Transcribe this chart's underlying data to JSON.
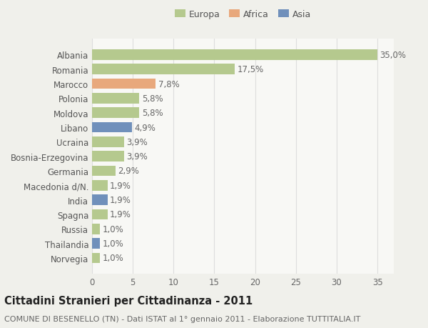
{
  "countries": [
    "Albania",
    "Romania",
    "Marocco",
    "Polonia",
    "Moldova",
    "Libano",
    "Ucraina",
    "Bosnia-Erzegovina",
    "Germania",
    "Macedonia d/N.",
    "India",
    "Spagna",
    "Russia",
    "Thailandia",
    "Norvegia"
  ],
  "values": [
    35.0,
    17.5,
    7.8,
    5.8,
    5.8,
    4.9,
    3.9,
    3.9,
    2.9,
    1.9,
    1.9,
    1.9,
    1.0,
    1.0,
    1.0
  ],
  "continents": [
    "Europa",
    "Europa",
    "Africa",
    "Europa",
    "Europa",
    "Asia",
    "Europa",
    "Europa",
    "Europa",
    "Europa",
    "Asia",
    "Europa",
    "Europa",
    "Asia",
    "Europa"
  ],
  "colors": {
    "Europa": "#b5c98e",
    "Africa": "#e8a87c",
    "Asia": "#7090bb"
  },
  "legend_labels": [
    "Europa",
    "Africa",
    "Asia"
  ],
  "title": "Cittadini Stranieri per Cittadinanza - 2011",
  "subtitle": "COMUNE DI BESENELLO (TN) - Dati ISTAT al 1° gennaio 2011 - Elaborazione TUTTITALIA.IT",
  "xlim": [
    0,
    37
  ],
  "xticks": [
    0,
    5,
    10,
    15,
    20,
    25,
    30,
    35
  ],
  "background_color": "#f0f0eb",
  "plot_background": "#f8f8f5",
  "grid_color": "#dddddd",
  "bar_height": 0.72,
  "label_fontsize": 8.5,
  "ytick_fontsize": 8.5,
  "xtick_fontsize": 8.5,
  "title_fontsize": 10.5,
  "subtitle_fontsize": 8.0,
  "value_label_color": "#666666",
  "ytick_color": "#555555"
}
